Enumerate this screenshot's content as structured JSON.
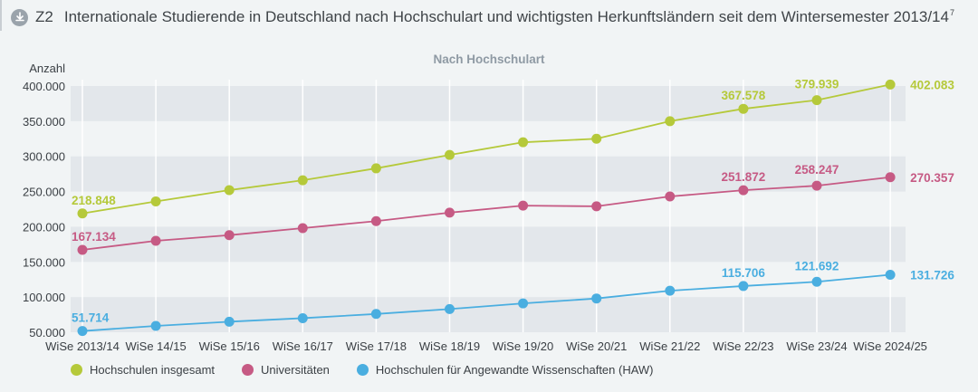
{
  "header": {
    "figure_number": "Z2",
    "title": "Internationale Studierende in Deutschland nach Hochschulart und wichtigsten Herkunftsländern seit dem Wintersemester 2013/14",
    "footnote": "7",
    "icon": "download-icon"
  },
  "chart_data": {
    "type": "line",
    "title": "Z2 Internationale Studierende in Deutschland nach Hochschulart und wichtigsten Herkunftsländern seit dem Wintersemester 2013/14",
    "subtitle": "Nach Hochschulart",
    "xlabel": "",
    "ylabel": "Anzahl",
    "ylim": [
      50000,
      400000
    ],
    "yticks": [
      50000,
      100000,
      150000,
      200000,
      250000,
      300000,
      350000,
      400000
    ],
    "ytick_labels": [
      "50.000",
      "100.000",
      "150.000",
      "200.000",
      "250.000",
      "300.000",
      "350.000",
      "400.000"
    ],
    "grid": "alternating horizontal bands, vertical white gridlines",
    "legend_position": "bottom",
    "categories": [
      "WiSe 2013/14",
      "WiSe 14/15",
      "WiSe 15/16",
      "WiSe 16/17",
      "WiSe 17/18",
      "WiSe 18/19",
      "WiSe 19/20",
      "WiSe 20/21",
      "WiSe 21/22",
      "WiSe 22/23",
      "WiSe 23/24",
      "WiSe 2024/25"
    ],
    "series": [
      {
        "name": "Hochschulen insgesamt",
        "color": "#b5c93a",
        "values": [
          218848,
          236000,
          252000,
          266000,
          283000,
          302000,
          320000,
          325000,
          350000,
          367578,
          379939,
          402083
        ],
        "labels": {
          "0": "218.848",
          "9": "367.578",
          "10": "379.939",
          "11": "402.083"
        }
      },
      {
        "name": "Universitäten",
        "color": "#c65a84",
        "values": [
          167134,
          180000,
          188000,
          198000,
          208000,
          220000,
          230000,
          229000,
          243000,
          251872,
          258247,
          270357
        ],
        "labels": {
          "0": "167.134",
          "9": "251.872",
          "10": "258.247",
          "11": "270.357"
        }
      },
      {
        "name": "Hochschulen für Angewandte Wissenschaften (HAW)",
        "color": "#4aaee0",
        "values": [
          51714,
          59000,
          65000,
          70000,
          76000,
          83000,
          91000,
          98000,
          109000,
          115706,
          121692,
          131726
        ],
        "labels": {
          "0": "51.714",
          "9": "115.706",
          "10": "121.692",
          "11": "131.726"
        }
      }
    ]
  }
}
